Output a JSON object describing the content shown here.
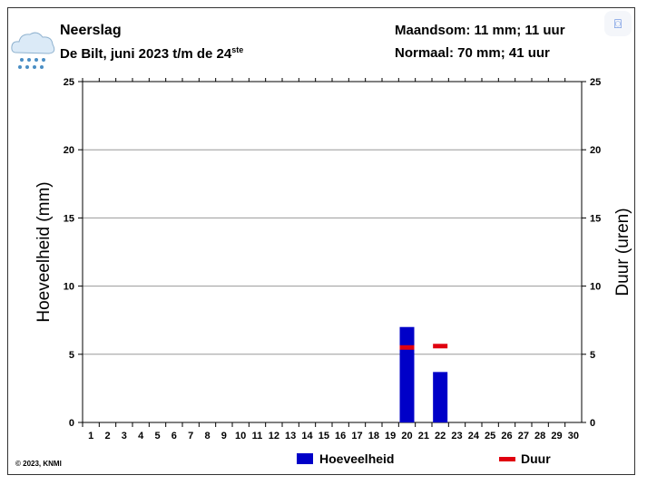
{
  "header": {
    "title": "Neerslag",
    "subtitle": "De Bilt, juni 2023 t/m de 24",
    "subtitle_sup": "ste",
    "monthsum": "Maandsom: 11 mm; 11 uur",
    "normal": "Normaal: 70 mm; 41 uur",
    "copyright": "© 2023, KNMI"
  },
  "icons": {
    "weather": "rain-cloud-icon",
    "scan": "scan-icon"
  },
  "colors": {
    "bar": "#0000c8",
    "duur": "#e0000f"
  },
  "chart_data": {
    "type": "bar",
    "title": "Neerslag",
    "ylabel": "Hoeveelheid (mm)",
    "y2label": "Duur (uren)",
    "ylim": [
      0,
      25
    ],
    "yticks": [
      0,
      5,
      10,
      15,
      20,
      25
    ],
    "categories": [
      1,
      2,
      3,
      4,
      5,
      6,
      7,
      8,
      9,
      10,
      11,
      12,
      13,
      14,
      15,
      16,
      17,
      18,
      19,
      20,
      21,
      22,
      23,
      24,
      25,
      26,
      27,
      28,
      29,
      30
    ],
    "series": [
      {
        "name": "Hoeveelheid",
        "type": "bar",
        "values": {
          "20": 7.0,
          "22": 3.7
        }
      },
      {
        "name": "Duur",
        "type": "marker",
        "values": {
          "20": 5.5,
          "22": 5.6
        }
      }
    ],
    "legend": [
      "Hoeveelheid",
      "Duur"
    ],
    "legend_position": "bottom",
    "grid": true
  }
}
